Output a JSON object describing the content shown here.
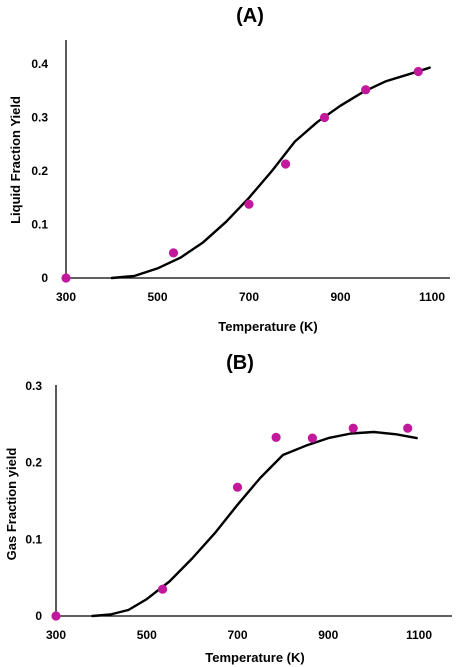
{
  "chart_data": [
    {
      "type": "scatter",
      "panel": "(A)",
      "xlabel": "Temperature (K)",
      "ylabel": "Liquid Fraction Yield",
      "xlim": [
        300,
        1100
      ],
      "ylim": [
        0,
        0.4
      ],
      "x_ticks": [
        "300",
        "500",
        "700",
        "900",
        "1100"
      ],
      "y_ticks": [
        "0",
        "0.1",
        "0.2",
        "0.3",
        "0.4"
      ],
      "series": [
        {
          "kind": "markers",
          "color": "#c2189b",
          "points": [
            [
              300,
              0.0
            ],
            [
              535,
              0.047
            ],
            [
              700,
              0.138
            ],
            [
              780,
              0.213
            ],
            [
              865,
              0.3
            ],
            [
              955,
              0.352
            ],
            [
              1070,
              0.386
            ]
          ]
        },
        {
          "kind": "line",
          "color": "#000000",
          "points": [
            [
              400,
              0.0
            ],
            [
              450,
              0.004
            ],
            [
              500,
              0.018
            ],
            [
              550,
              0.038
            ],
            [
              600,
              0.067
            ],
            [
              650,
              0.105
            ],
            [
              700,
              0.15
            ],
            [
              750,
              0.2
            ],
            [
              800,
              0.255
            ],
            [
              850,
              0.292
            ],
            [
              900,
              0.322
            ],
            [
              950,
              0.348
            ],
            [
              1000,
              0.368
            ],
            [
              1050,
              0.381
            ],
            [
              1095,
              0.393
            ]
          ]
        }
      ]
    },
    {
      "type": "scatter",
      "panel": "(B)",
      "xlabel": "Temperature (K)",
      "ylabel": "Gas Fraction yield",
      "xlim": [
        300,
        1100
      ],
      "ylim": [
        0,
        0.3
      ],
      "x_ticks": [
        "300",
        "500",
        "700",
        "900",
        "1100"
      ],
      "y_ticks": [
        "0",
        "0.1",
        "0.2",
        "0.3"
      ],
      "series": [
        {
          "kind": "markers",
          "color": "#c2189b",
          "points": [
            [
              300,
              0.0
            ],
            [
              535,
              0.035
            ],
            [
              700,
              0.168
            ],
            [
              785,
              0.233
            ],
            [
              865,
              0.232
            ],
            [
              955,
              0.245
            ],
            [
              1075,
              0.245
            ]
          ]
        },
        {
          "kind": "line",
          "color": "#000000",
          "points": [
            [
              380,
              0.0
            ],
            [
              420,
              0.002
            ],
            [
              460,
              0.008
            ],
            [
              500,
              0.022
            ],
            [
              550,
              0.045
            ],
            [
              600,
              0.075
            ],
            [
              650,
              0.108
            ],
            [
              700,
              0.145
            ],
            [
              750,
              0.18
            ],
            [
              800,
              0.21
            ],
            [
              850,
              0.222
            ],
            [
              900,
              0.232
            ],
            [
              950,
              0.238
            ],
            [
              1000,
              0.24
            ],
            [
              1050,
              0.237
            ],
            [
              1095,
              0.232
            ]
          ]
        }
      ]
    }
  ]
}
